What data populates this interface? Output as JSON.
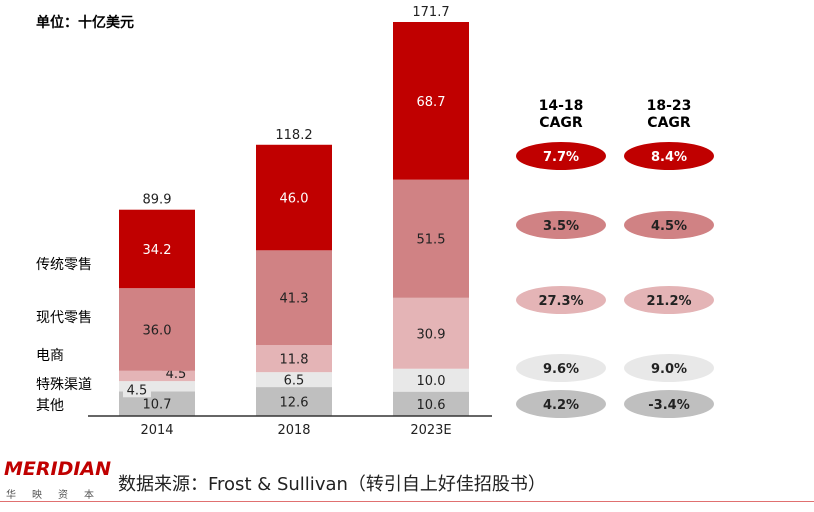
{
  "unit_label": "单位：十亿美元",
  "source": "数据来源：Frost & Sullivan（转引自上好佳招股书）",
  "logo": {
    "text": "MERIDIAN",
    "subtitle": "华映资本"
  },
  "chart_data": {
    "type": "bar",
    "stacked": true,
    "categories": [
      "2014",
      "2018",
      "2023E"
    ],
    "ylim": [
      0,
      171.7
    ],
    "series": [
      {
        "name": "其他",
        "values": [
          10.7,
          12.6,
          10.6
        ],
        "color": "#bfbfbf",
        "text_color": "#222"
      },
      {
        "name": "特殊渠道",
        "values": [
          4.5,
          6.5,
          10.0
        ],
        "color": "#e8e8e8",
        "text_color": "#222"
      },
      {
        "name": "电商",
        "values": [
          4.5,
          11.8,
          30.9
        ],
        "color": "#e4b4b6",
        "text_color": "#222"
      },
      {
        "name": "现代零售",
        "values": [
          36.0,
          41.3,
          51.5
        ],
        "color": "#d08284",
        "text_color": "#222"
      },
      {
        "name": "传统零售",
        "values": [
          34.2,
          46.0,
          68.7
        ],
        "color": "#c00000",
        "text_color": "#fff"
      }
    ],
    "totals": [
      "89.9",
      "118.2",
      "171.7"
    ],
    "legend_labels": [
      "传统零售",
      "现代零售",
      "电商",
      "特殊渠道",
      "其他"
    ]
  },
  "cagr": {
    "headers": [
      [
        "14-18",
        "CAGR"
      ],
      [
        "18-23",
        "CAGR"
      ]
    ],
    "rows": [
      {
        "series": "传统零售",
        "values": [
          "7.7%",
          "8.4%"
        ],
        "color": "#c00000",
        "text_color": "#fff"
      },
      {
        "series": "现代零售",
        "values": [
          "3.5%",
          "4.5%"
        ],
        "color": "#d08284",
        "text_color": "#222"
      },
      {
        "series": "电商",
        "values": [
          "27.3%",
          "21.2%"
        ],
        "color": "#e4b4b6",
        "text_color": "#222"
      },
      {
        "series": "特殊渠道",
        "values": [
          "9.6%",
          "9.0%"
        ],
        "color": "#e8e8e8",
        "text_color": "#222"
      },
      {
        "series": "其他",
        "values": [
          "4.2%",
          "-3.4%"
        ],
        "color": "#bfbfbf",
        "text_color": "#222"
      }
    ]
  }
}
